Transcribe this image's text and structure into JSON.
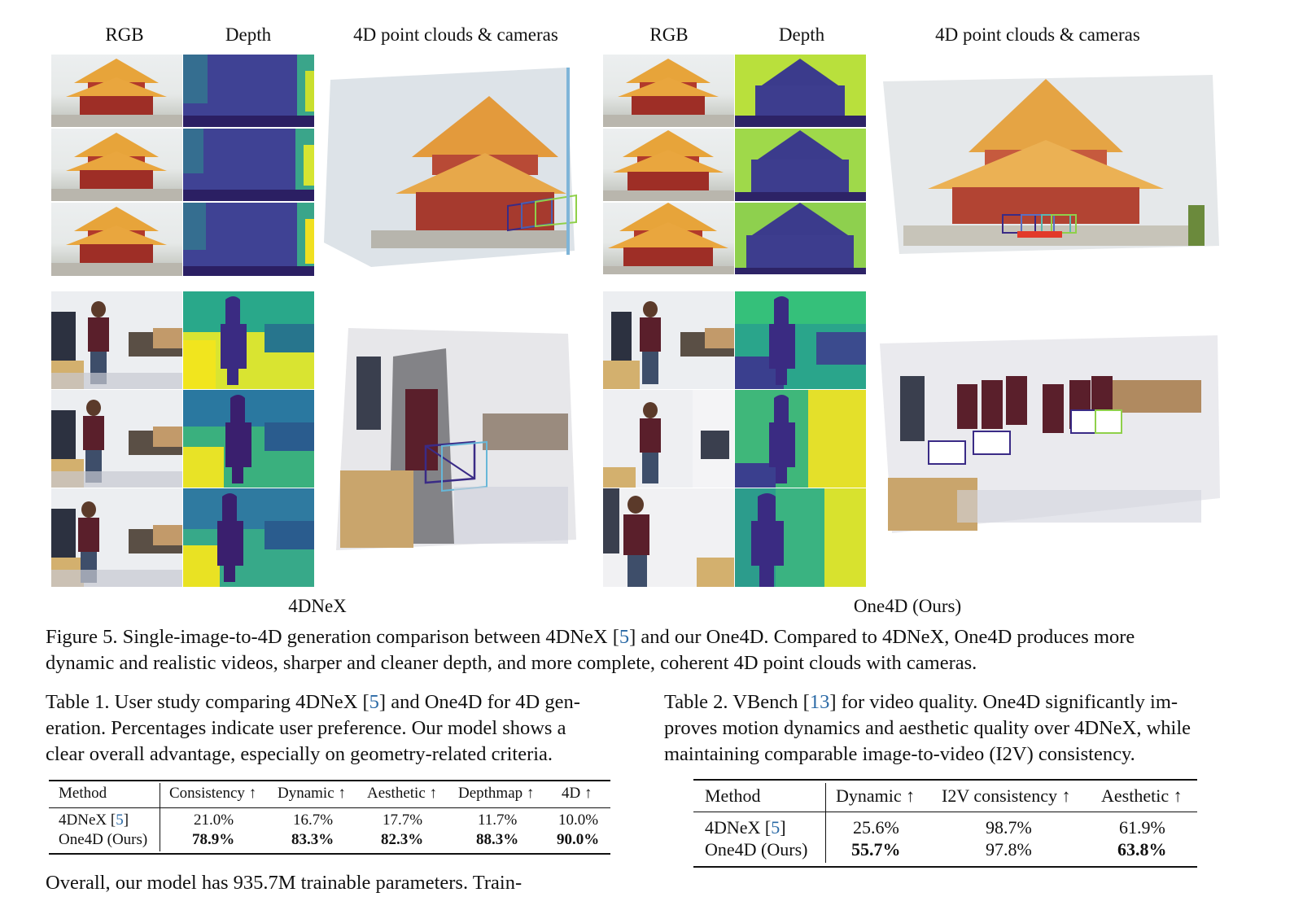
{
  "figure": {
    "left_group": {
      "col_headers": [
        "RGB",
        "Depth",
        "4D point clouds & cameras"
      ],
      "label": "4DNeX"
    },
    "right_group": {
      "col_headers": [
        "RGB",
        "Depth",
        "4D point clouds & cameras"
      ],
      "label": "One4D (Ours)"
    },
    "caption": {
      "line1_prefix": "Figure 5.  Single-image-to-4D generation comparison between 4DNeX [",
      "line1_cite": "5",
      "line1_suffix": "] and our One4D. Compared to 4DNeX, One4D produces more",
      "line2": "dynamic and realistic videos, sharper and cleaner depth, and more complete, coherent 4D point clouds with cameras."
    }
  },
  "table1": {
    "caption_l1_prefix": "Table 1. User study comparing 4DNeX [",
    "caption_l1_cite": "5",
    "caption_l1_suffix": "] and One4D for 4D gen-",
    "caption_l2": "eration. Percentages indicate user preference. Our model shows a",
    "caption_l3": "clear overall advantage, especially on geometry-related criteria.",
    "headers": [
      "Method",
      "Consistency ↑",
      "Dynamic ↑",
      "Aesthetic ↑",
      "Depthmap ↑",
      "4D ↑"
    ],
    "rows": [
      {
        "method": "4DNeX [",
        "cite": "5",
        "close": "]",
        "values": [
          "21.0%",
          "16.7%",
          "17.7%",
          "11.7%",
          "10.0%"
        ]
      },
      {
        "method": "One4D (Ours)",
        "values": [
          "78.9%",
          "83.3%",
          "82.3%",
          "88.3%",
          "90.0%"
        ]
      }
    ]
  },
  "table2": {
    "caption_l1_prefix": "Table 2.  VBench [",
    "caption_l1_cite": "13",
    "caption_l1_suffix": "] for video quality.  One4D significantly im-",
    "caption_l2": "proves motion dynamics and aesthetic quality over 4DNeX, while",
    "caption_l3": "maintaining comparable image-to-video (I2V) consistency.",
    "headers": [
      "Method",
      "Dynamic ↑",
      "I2V consistency ↑",
      "Aesthetic ↑"
    ],
    "rows": [
      {
        "method": "4DNeX [",
        "cite": "5",
        "close": "]",
        "values": [
          "25.6%",
          "98.7%",
          "61.9%"
        ]
      },
      {
        "method": "One4D (Ours)",
        "values": [
          "55.7%",
          "97.8%",
          "63.8%"
        ]
      }
    ]
  },
  "body_text": "Overall, our model has 935.7M trainable parameters. Train-"
}
